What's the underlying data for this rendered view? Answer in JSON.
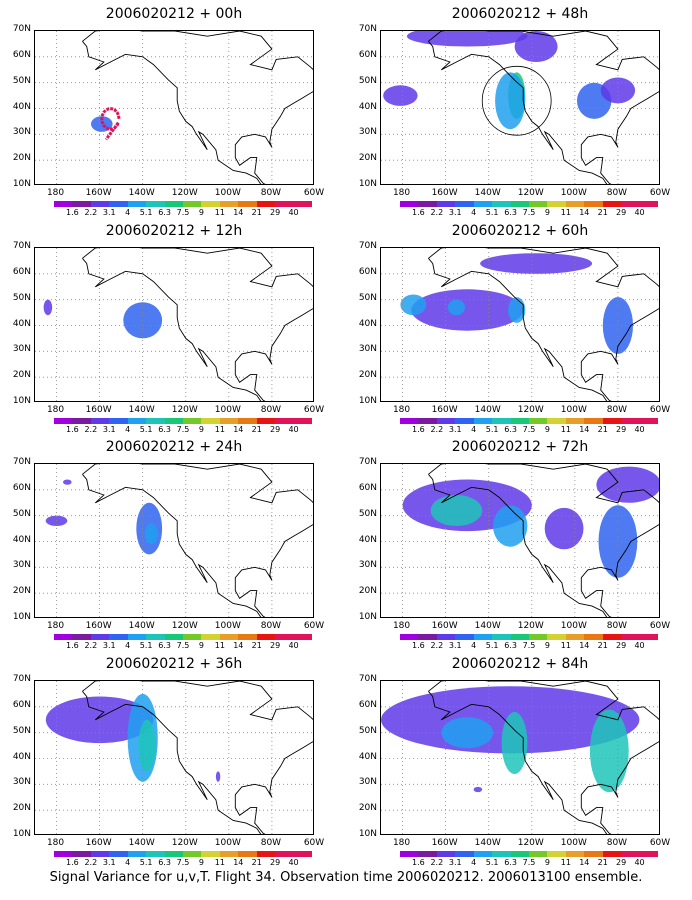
{
  "panels": [
    {
      "title": "2006020212 + 00h",
      "col": 0,
      "row": 0,
      "blobs": [
        {
          "x": -159,
          "y": 34,
          "rx": 5,
          "ry": 3,
          "level": 3
        }
      ],
      "trajectory": true
    },
    {
      "title": "2006020212 + 48h",
      "col": 1,
      "row": 0,
      "blobs": [
        {
          "x": -150,
          "y": 68,
          "rx": 28,
          "ry": 4,
          "level": 2
        },
        {
          "x": -118,
          "y": 64,
          "rx": 10,
          "ry": 6,
          "level": 2
        },
        {
          "x": -127,
          "y": 45,
          "rx": 4,
          "ry": 9,
          "level": 6
        },
        {
          "x": -130,
          "y": 43,
          "rx": 7,
          "ry": 11,
          "level": 4
        },
        {
          "x": -181,
          "y": 45,
          "rx": 8,
          "ry": 4,
          "level": 2
        },
        {
          "x": -91,
          "y": 43,
          "rx": 8,
          "ry": 7,
          "level": 3
        },
        {
          "x": -80,
          "y": 47,
          "rx": 8,
          "ry": 5,
          "level": 2
        }
      ],
      "circle": {
        "x": -127,
        "y": 43,
        "r": 10
      }
    },
    {
      "title": "2006020212 + 12h",
      "col": 0,
      "row": 1,
      "blobs": [
        {
          "x": -140,
          "y": 42,
          "rx": 9,
          "ry": 7,
          "level": 3
        },
        {
          "x": -184,
          "y": 47,
          "rx": 2,
          "ry": 3,
          "level": 2
        }
      ]
    },
    {
      "title": "2006020212 + 60h",
      "col": 1,
      "row": 1,
      "blobs": [
        {
          "x": -150,
          "y": 46,
          "rx": 26,
          "ry": 8,
          "level": 2
        },
        {
          "x": -175,
          "y": 48,
          "rx": 6,
          "ry": 4,
          "level": 4
        },
        {
          "x": -155,
          "y": 47,
          "rx": 4,
          "ry": 3,
          "level": 4
        },
        {
          "x": -127,
          "y": 46,
          "rx": 4,
          "ry": 5,
          "level": 4
        },
        {
          "x": -118,
          "y": 64,
          "rx": 26,
          "ry": 4,
          "level": 2
        },
        {
          "x": -80,
          "y": 40,
          "rx": 7,
          "ry": 11,
          "level": 3
        }
      ]
    },
    {
      "title": "2006020212 + 24h",
      "col": 0,
      "row": 2,
      "blobs": [
        {
          "x": -137,
          "y": 45,
          "rx": 6,
          "ry": 10,
          "level": 3
        },
        {
          "x": -136,
          "y": 43,
          "rx": 3,
          "ry": 4,
          "level": 4
        },
        {
          "x": -180,
          "y": 48,
          "rx": 5,
          "ry": 2,
          "level": 2
        },
        {
          "x": -175,
          "y": 63,
          "rx": 2,
          "ry": 1,
          "level": 2
        }
      ]
    },
    {
      "title": "2006020212 + 72h",
      "col": 1,
      "row": 2,
      "blobs": [
        {
          "x": -150,
          "y": 54,
          "rx": 30,
          "ry": 10,
          "level": 2
        },
        {
          "x": -155,
          "y": 52,
          "rx": 12,
          "ry": 6,
          "level": 5
        },
        {
          "x": -130,
          "y": 46,
          "rx": 8,
          "ry": 8,
          "level": 4
        },
        {
          "x": -105,
          "y": 45,
          "rx": 9,
          "ry": 8,
          "level": 2
        },
        {
          "x": -80,
          "y": 40,
          "rx": 9,
          "ry": 14,
          "level": 3
        },
        {
          "x": -75,
          "y": 62,
          "rx": 15,
          "ry": 7,
          "level": 2
        }
      ]
    },
    {
      "title": "2006020212 + 36h",
      "col": 0,
      "row": 3,
      "blobs": [
        {
          "x": -160,
          "y": 55,
          "rx": 25,
          "ry": 9,
          "level": 2
        },
        {
          "x": -140,
          "y": 48,
          "rx": 7,
          "ry": 17,
          "level": 4
        },
        {
          "x": -138,
          "y": 45,
          "rx": 4,
          "ry": 10,
          "level": 5
        },
        {
          "x": -105,
          "y": 33,
          "rx": 1,
          "ry": 2,
          "level": 2
        }
      ]
    },
    {
      "title": "2006020212 + 84h",
      "col": 1,
      "row": 3,
      "blobs": [
        {
          "x": -130,
          "y": 55,
          "rx": 60,
          "ry": 13,
          "level": 2
        },
        {
          "x": -150,
          "y": 50,
          "rx": 12,
          "ry": 6,
          "level": 4
        },
        {
          "x": -128,
          "y": 46,
          "rx": 6,
          "ry": 12,
          "level": 5
        },
        {
          "x": -84,
          "y": 43,
          "rx": 9,
          "ry": 16,
          "level": 5
        },
        {
          "x": -145,
          "y": 28,
          "rx": 2,
          "ry": 1,
          "level": 2
        }
      ]
    }
  ],
  "y_labels": [
    "70N",
    "60N",
    "50N",
    "40N",
    "30N",
    "20N",
    "10N"
  ],
  "x_labels": [
    "180",
    "160W",
    "140W",
    "120W",
    "100W",
    "80W",
    "60W"
  ],
  "colorbar_labels": [
    "1.6",
    "2.2",
    "3.1",
    "4",
    "5.1",
    "6.3",
    "7.5",
    "9",
    "11",
    "14",
    "21",
    "29",
    "40"
  ],
  "colorbar_colors": [
    "#a000e0",
    "#7a1aa0",
    "#5f3ae8",
    "#2f63f0",
    "#20a0f0",
    "#1ec4b8",
    "#18c878",
    "#74c828",
    "#d2d232",
    "#e6a02a",
    "#e87814",
    "#e81414",
    "#e0125a"
  ],
  "footer": "Signal Variance for u,v,T. Flight 34. Observation time 2006020212. 2006013100 ensemble."
}
